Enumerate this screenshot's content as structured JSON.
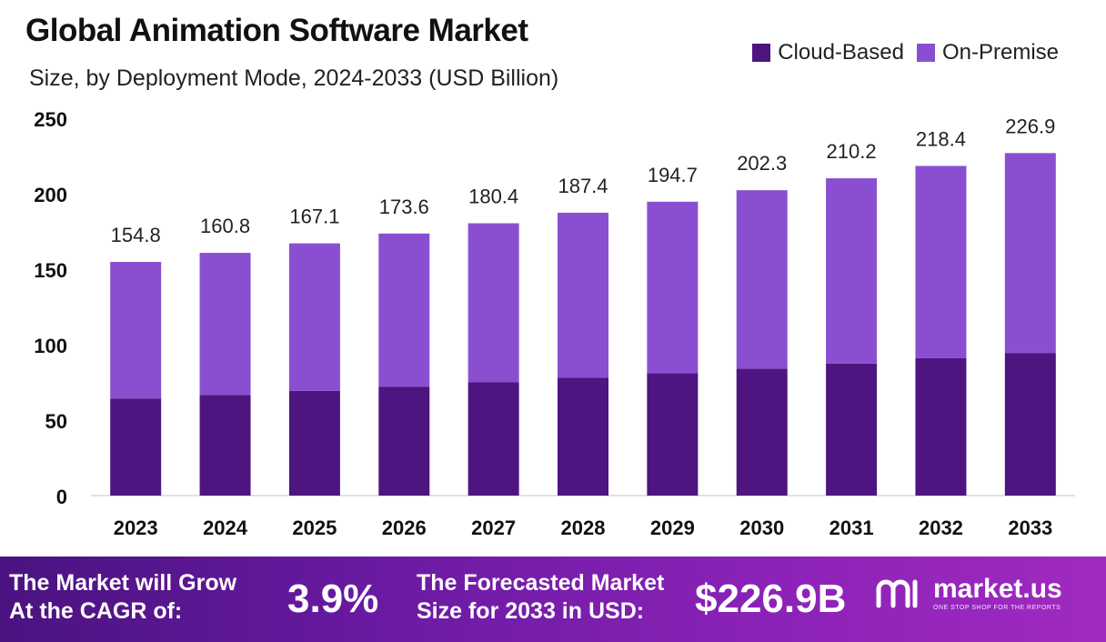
{
  "colors": {
    "cloud": "#4e1580",
    "onprem": "#8a4fd1",
    "banner_start": "#4a1380",
    "banner_end": "#a02ac0"
  },
  "chart_data": {
    "type": "bar",
    "stacked": true,
    "title": "Global Animation Software Market",
    "subtitle": "Size, by Deployment Mode, 2024-2033 (USD Billion)",
    "categories": [
      "2023",
      "2024",
      "2025",
      "2026",
      "2027",
      "2028",
      "2029",
      "2030",
      "2031",
      "2032",
      "2033"
    ],
    "series": [
      {
        "name": "Cloud-Based",
        "values": [
          64.2,
          66.6,
          69.4,
          72.0,
          75.0,
          78.0,
          81.0,
          84.0,
          87.5,
          91.0,
          94.5
        ]
      },
      {
        "name": "On-Premise",
        "values": [
          90.6,
          94.2,
          97.7,
          101.6,
          105.4,
          109.4,
          113.7,
          118.3,
          122.7,
          127.4,
          132.4
        ]
      }
    ],
    "totals": [
      "154.8",
      "160.8",
      "167.1",
      "173.6",
      "180.4",
      "187.4",
      "194.7",
      "202.3",
      "210.2",
      "218.4",
      "226.9"
    ],
    "yticks": [
      0,
      50,
      100,
      150,
      200,
      250
    ],
    "ylim": [
      0,
      250
    ],
    "legend_position": "top-right",
    "grid": false
  },
  "banner": {
    "cagr_line1": "The Market will Grow",
    "cagr_line2": "At the CAGR of:",
    "cagr_value": "3.9%",
    "forecast_line1": "The Forecasted Market",
    "forecast_line2": "Size for 2033 in USD:",
    "forecast_value": "$226.9B",
    "logo_text": "market.us",
    "logo_tagline": "ONE STOP SHOP FOR THE REPORTS",
    "logo_icon": "market-us-logo-icon"
  }
}
